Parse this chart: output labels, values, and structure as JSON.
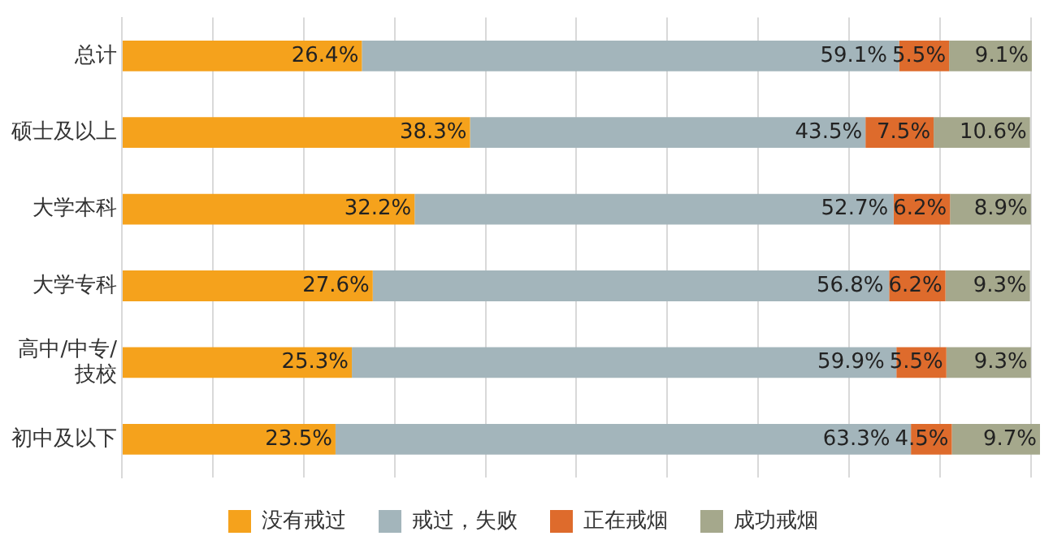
{
  "chart_data": {
    "type": "bar",
    "orientation": "horizontal",
    "stacked": true,
    "categories": [
      "总计",
      "硕士及以上",
      "大学本科",
      "大学专科",
      "高中/中专/技校",
      "初中及以下"
    ],
    "series": [
      {
        "name": "没有戒过",
        "color": "#f5a21c",
        "values": [
          26.4,
          38.3,
          32.2,
          27.6,
          25.3,
          23.5
        ],
        "value_labels": [
          "26.4%",
          "38.3%",
          "32.2%",
          "27.6%",
          "25.3%",
          "23.5%"
        ]
      },
      {
        "name": "戒过，失败",
        "color": "#a3b5bb",
        "values": [
          59.1,
          43.5,
          52.7,
          56.8,
          59.9,
          63.3
        ],
        "value_labels": [
          "59.1%",
          "43.5%",
          "52.7%",
          "56.8%",
          "59.9%",
          "63.3%"
        ]
      },
      {
        "name": "正在戒烟",
        "color": "#de6b2c",
        "values": [
          5.5,
          7.5,
          6.2,
          6.2,
          5.5,
          4.5
        ],
        "value_labels": [
          "5.5%",
          "7.5%",
          "6.2%",
          "6.2%",
          "5.5%",
          "4.5%"
        ]
      },
      {
        "name": "成功戒烟",
        "color": "#a5a88c",
        "values": [
          9.1,
          10.6,
          8.9,
          9.3,
          9.3,
          9.7
        ],
        "value_labels": [
          "9.1%",
          "10.6%",
          "8.9%",
          "9.3%",
          "9.3%",
          "9.7%"
        ]
      }
    ],
    "xlim": [
      0,
      101
    ],
    "xticks": [
      {
        "value": 0,
        "label": null
      },
      {
        "value": 10,
        "label": null
      },
      {
        "value": 20,
        "label": null
      },
      {
        "value": 30,
        "label": null
      },
      {
        "value": 40,
        "label": null
      },
      {
        "value": 50,
        "label": null
      },
      {
        "value": 60,
        "label": null
      },
      {
        "value": 70,
        "label": null
      },
      {
        "value": 80,
        "label": null
      },
      {
        "value": 90,
        "label": null
      },
      {
        "value": 100,
        "label": null
      }
    ],
    "tick_labels": "y",
    "grid": "x",
    "legend": "bottom"
  }
}
